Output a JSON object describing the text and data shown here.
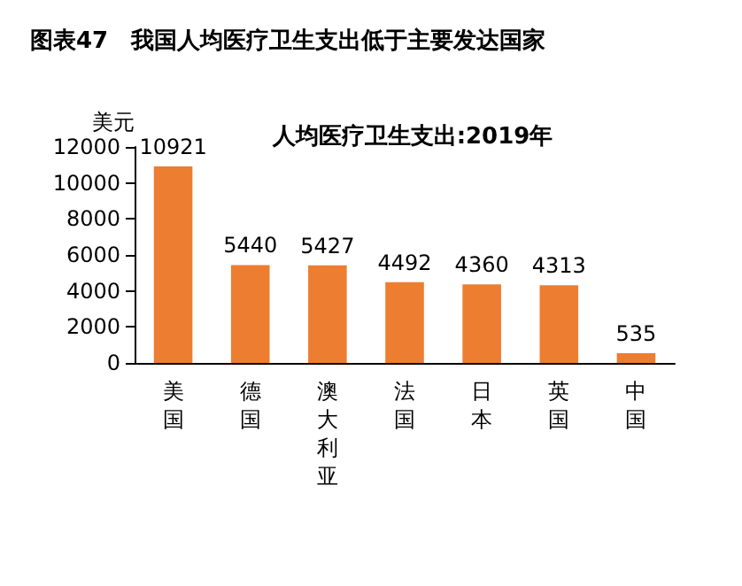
{
  "chart_data": {
    "type": "bar",
    "title": "图表47　我国人均医疗卫生支出低于主要发达国家",
    "subtitle": "人均医疗卫生支出:2019年",
    "ylabel": "美元",
    "categories": [
      "美国",
      "德国",
      "澳大利亚",
      "法国",
      "日本",
      "英国",
      "中国"
    ],
    "values": [
      10921,
      5440,
      5427,
      4492,
      4360,
      4313,
      535
    ],
    "color": "#ed7d31",
    "ylim": [
      0,
      12000
    ],
    "yticks": [
      0,
      2000,
      4000,
      6000,
      8000,
      10000,
      12000
    ],
    "grid": false,
    "data_labels": true
  }
}
